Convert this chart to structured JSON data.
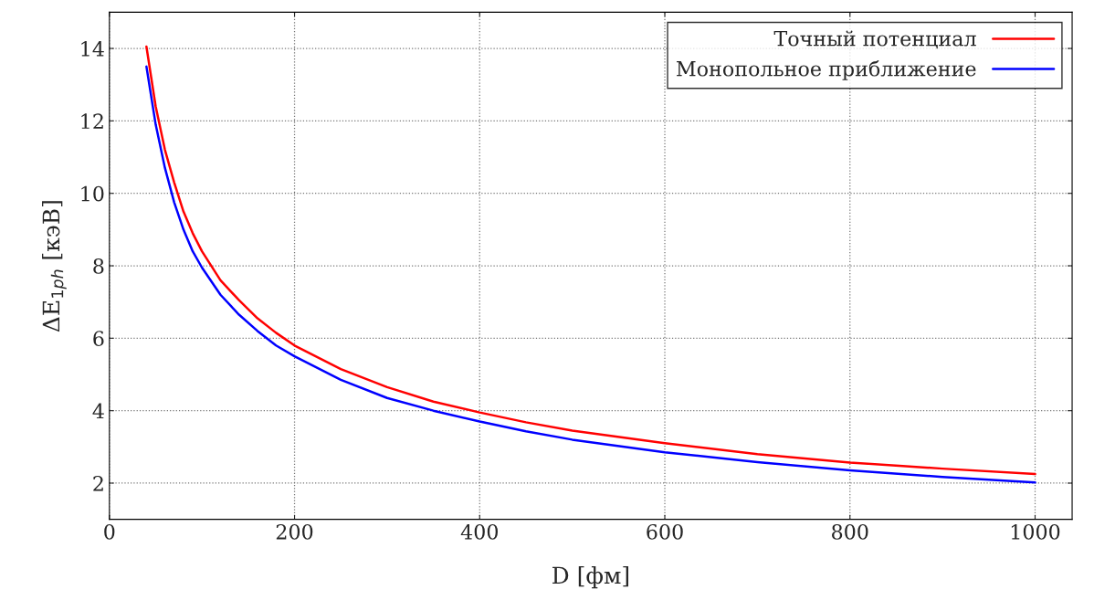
{
  "chart_data": {
    "type": "line",
    "xlabel": "D [фм]",
    "ylabel": "ΔE$_{1ph}$ [кэВ]",
    "x": [
      40,
      50,
      60,
      70,
      80,
      90,
      100,
      120,
      140,
      160,
      180,
      200,
      250,
      300,
      350,
      400,
      450,
      500,
      600,
      700,
      800,
      900,
      1000
    ],
    "series": [
      {
        "name": "Точный потенциал",
        "color": "#ff0000",
        "values": [
          14.05,
          12.4,
          11.2,
          10.3,
          9.5,
          8.9,
          8.4,
          7.6,
          7.05,
          6.55,
          6.15,
          5.8,
          5.15,
          4.65,
          4.25,
          3.95,
          3.68,
          3.45,
          3.1,
          2.8,
          2.57,
          2.4,
          2.25
        ]
      },
      {
        "name": "Монопольное приближение",
        "color": "#0000ff",
        "values": [
          13.5,
          11.9,
          10.7,
          9.75,
          9.0,
          8.4,
          7.95,
          7.2,
          6.65,
          6.2,
          5.8,
          5.5,
          4.85,
          4.35,
          4.0,
          3.7,
          3.43,
          3.2,
          2.85,
          2.58,
          2.35,
          2.17,
          2.02
        ]
      }
    ],
    "xlim": [
      0,
      1040
    ],
    "xticks": [
      0,
      200,
      400,
      600,
      800,
      1000
    ],
    "ylim": [
      1,
      15
    ],
    "yticks": [
      2,
      4,
      6,
      8,
      10,
      12,
      14
    ],
    "grid": true,
    "legend": "top right",
    "marker": "none",
    "line_style": "solid"
  }
}
